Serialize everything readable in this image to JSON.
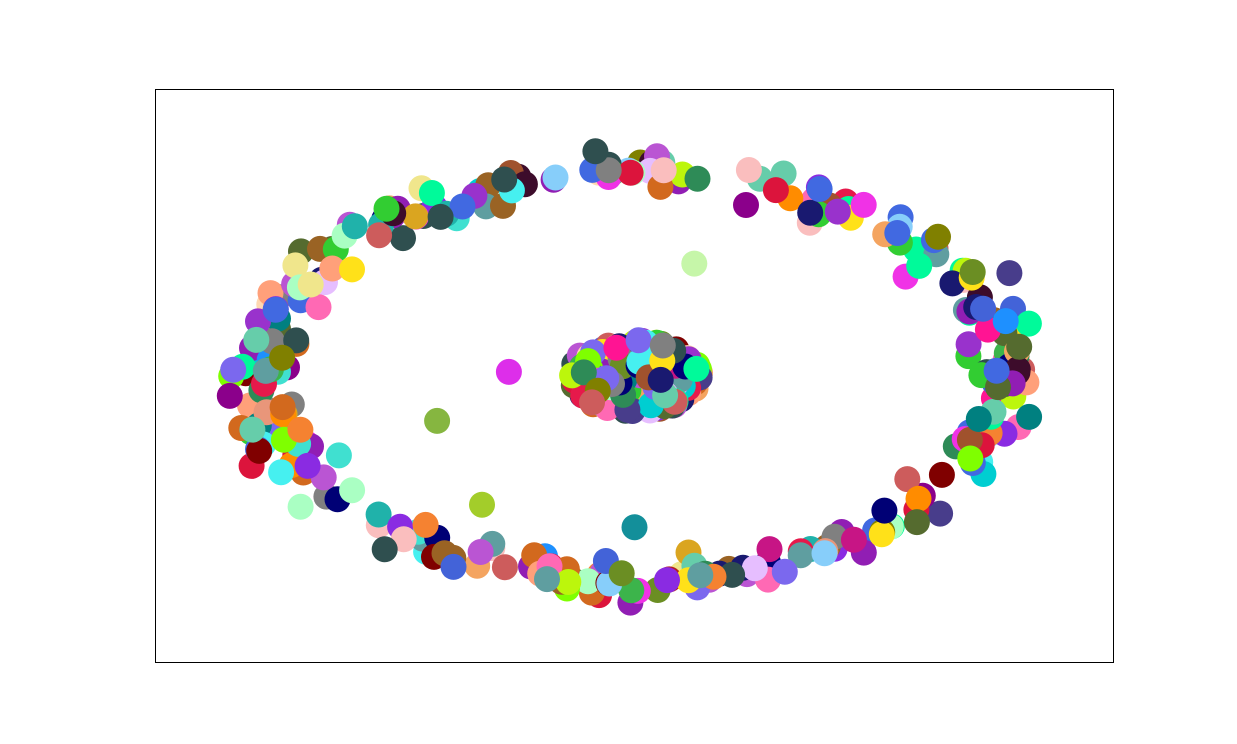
{
  "chart_data": {
    "type": "scatter",
    "title": "",
    "xlabel": "",
    "ylabel": "",
    "xlim": [
      -1.6,
      1.6
    ],
    "ylim": [
      -1.4,
      1.4
    ],
    "axis_ticks": "none",
    "grid": false,
    "legend": "none",
    "clusters": [
      {
        "name": "",
        "shape": "outer-ring",
        "center": [
          0.0,
          0.0
        ],
        "radius_x": 1.25,
        "radius_y": 1.0,
        "count": 320
      },
      {
        "name": "",
        "shape": "inner-blob",
        "center": [
          0.0,
          0.0
        ],
        "radius_x": 0.22,
        "radius_y": 0.18,
        "count": 200
      }
    ],
    "outliers": [
      {
        "x": -0.42,
        "y": 0.02,
        "color": "#dd2eea"
      },
      {
        "x": -0.66,
        "y": -0.22,
        "color": "#86b640"
      },
      {
        "x": -0.51,
        "y": -0.63,
        "color": "#a3cd2a"
      },
      {
        "x": 0.0,
        "y": -0.74,
        "color": "#138f9a"
      },
      {
        "x": 0.2,
        "y": 0.55,
        "color": "#c6f6a9"
      }
    ],
    "point_colors": [
      "#e6194b",
      "#3cb44b",
      "#ffe119",
      "#4363d8",
      "#f58231",
      "#911eb4",
      "#46f0f0",
      "#f032e6",
      "#bcf60c",
      "#fabebe",
      "#008080",
      "#e6beff",
      "#9a6324",
      "#800000",
      "#aaffc3",
      "#808000",
      "#ffd8b1",
      "#000075",
      "#808080",
      "#2f4f4f",
      "#ff1493",
      "#00ced1",
      "#7fff00",
      "#dc143c",
      "#1e90ff",
      "#ff8c00",
      "#8a2be2",
      "#20b2aa",
      "#b22222",
      "#6b8e23",
      "#c71585",
      "#4169e1",
      "#d2691e",
      "#32cd32",
      "#ff69b4",
      "#483d8b",
      "#00fa9a",
      "#daa520",
      "#5f9ea0",
      "#9932cc",
      "#f4a460",
      "#2e8b57",
      "#ba55d3",
      "#cd5c5c",
      "#66cdaa",
      "#191970",
      "#ffa07a",
      "#556b2f",
      "#87cefa",
      "#a0522d",
      "#7b68ee",
      "#3d0c2b",
      "#f0e68c",
      "#e9967a",
      "#40e0d0",
      "#8b008b"
    ]
  }
}
